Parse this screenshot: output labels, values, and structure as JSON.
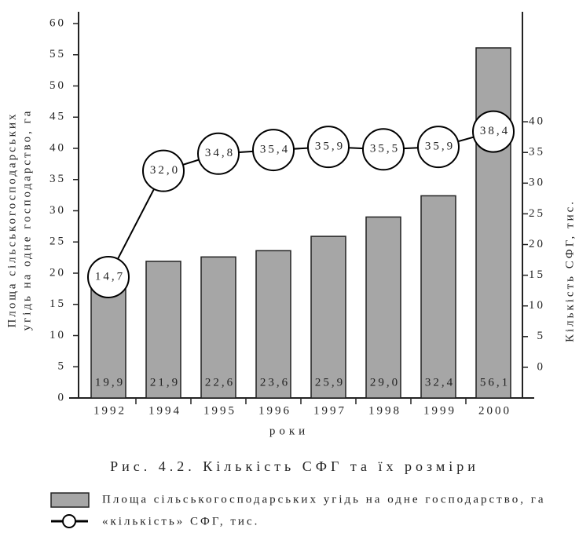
{
  "chart_data": {
    "type": "bar",
    "title": "Рис. 4.2. Кількість СФГ та їх розміри",
    "xlabel": "роки",
    "ylabel": [
      "Площа сільськогосподарських",
      "угідь на одне господарство, га"
    ],
    "y2label": "Кількість СФГ, тис.",
    "categories": [
      "1992",
      "1994",
      "1995",
      "1996",
      "1997",
      "1998",
      "1999",
      "2000"
    ],
    "series": [
      {
        "name": "Площа сільськогосподарських угідь на одне господарство, га",
        "type": "bar",
        "color": "#a6a6a6",
        "values": [
          19.9,
          21.9,
          22.6,
          23.6,
          25.9,
          29.0,
          32.4,
          56.1
        ],
        "value_labels": [
          "19,9",
          "21,9",
          "22,6",
          "23,6",
          "25,9",
          "29,0",
          "32,4",
          "56,1"
        ]
      },
      {
        "name": "«кількість» СФГ, тис.",
        "type": "line",
        "axis": "y2",
        "color": "#000000",
        "values": [
          14.7,
          32.0,
          34.8,
          35.4,
          35.9,
          35.5,
          35.9,
          38.4
        ],
        "value_labels": [
          "14,7",
          "32,0",
          "34,8",
          "35,4",
          "35,9",
          "35,5",
          "35,9",
          "38,4"
        ]
      }
    ],
    "ylim": [
      0,
      60
    ],
    "yticks": [
      0,
      5,
      10,
      15,
      20,
      25,
      30,
      35,
      40,
      45,
      50,
      55,
      60
    ],
    "y2lim": [
      -5,
      56
    ],
    "y2ticks": [
      0,
      5,
      10,
      15,
      20,
      25,
      30,
      35,
      40
    ]
  }
}
